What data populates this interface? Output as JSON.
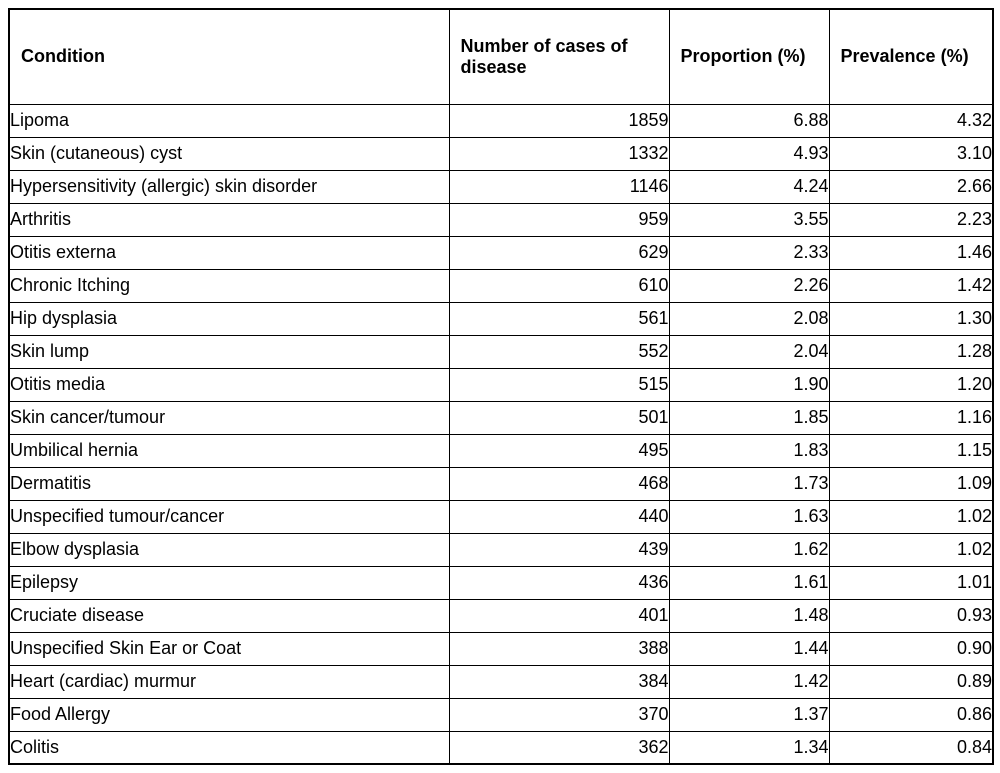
{
  "table": {
    "headers": [
      "Condition",
      "Number of cases of disease",
      "Proportion (%)",
      "Prevalence (%)"
    ],
    "rows": [
      {
        "condition": "Lipoma",
        "cases": "1859",
        "proportion": "6.88",
        "prevalence": "4.32"
      },
      {
        "condition": "Skin (cutaneous) cyst",
        "cases": "1332",
        "proportion": "4.93",
        "prevalence": "3.10"
      },
      {
        "condition": "Hypersensitivity (allergic) skin disorder",
        "cases": "1146",
        "proportion": "4.24",
        "prevalence": "2.66"
      },
      {
        "condition": "Arthritis",
        "cases": "959",
        "proportion": "3.55",
        "prevalence": "2.23"
      },
      {
        "condition": "Otitis externa",
        "cases": "629",
        "proportion": "2.33",
        "prevalence": "1.46"
      },
      {
        "condition": "Chronic Itching",
        "cases": "610",
        "proportion": "2.26",
        "prevalence": "1.42"
      },
      {
        "condition": "Hip dysplasia",
        "cases": "561",
        "proportion": "2.08",
        "prevalence": "1.30"
      },
      {
        "condition": "Skin lump",
        "cases": "552",
        "proportion": "2.04",
        "prevalence": "1.28"
      },
      {
        "condition": "Otitis media",
        "cases": "515",
        "proportion": "1.90",
        "prevalence": "1.20"
      },
      {
        "condition": "Skin cancer/tumour",
        "cases": "501",
        "proportion": "1.85",
        "prevalence": "1.16"
      },
      {
        "condition": "Umbilical hernia",
        "cases": "495",
        "proportion": "1.83",
        "prevalence": "1.15"
      },
      {
        "condition": "Dermatitis",
        "cases": "468",
        "proportion": "1.73",
        "prevalence": "1.09"
      },
      {
        "condition": "Unspecified tumour/cancer",
        "cases": "440",
        "proportion": "1.63",
        "prevalence": "1.02"
      },
      {
        "condition": "Elbow dysplasia",
        "cases": "439",
        "proportion": "1.62",
        "prevalence": "1.02"
      },
      {
        "condition": "Epilepsy",
        "cases": "436",
        "proportion": "1.61",
        "prevalence": "1.01"
      },
      {
        "condition": "Cruciate disease",
        "cases": "401",
        "proportion": "1.48",
        "prevalence": "0.93"
      },
      {
        "condition": "Unspecified Skin Ear or Coat",
        "cases": "388",
        "proportion": "1.44",
        "prevalence": "0.90"
      },
      {
        "condition": "Heart (cardiac) murmur",
        "cases": "384",
        "proportion": "1.42",
        "prevalence": "0.89"
      },
      {
        "condition": "Food Allergy",
        "cases": "370",
        "proportion": "1.37",
        "prevalence": "0.86"
      },
      {
        "condition": "Colitis",
        "cases": "362",
        "proportion": "1.34",
        "prevalence": "0.84"
      }
    ],
    "colors": {
      "border": "#000000",
      "text": "#000000",
      "background": "#ffffff"
    }
  },
  "chart_data": {
    "type": "table",
    "title": "",
    "columns": [
      "Condition",
      "Number of cases of disease",
      "Proportion (%)",
      "Prevalence (%)"
    ],
    "categories": [
      "Lipoma",
      "Skin (cutaneous) cyst",
      "Hypersensitivity (allergic) skin disorder",
      "Arthritis",
      "Otitis externa",
      "Chronic Itching",
      "Hip dysplasia",
      "Skin lump",
      "Otitis media",
      "Skin cancer/tumour",
      "Umbilical hernia",
      "Dermatitis",
      "Unspecified tumour/cancer",
      "Elbow dysplasia",
      "Epilepsy",
      "Cruciate disease",
      "Unspecified Skin Ear or Coat",
      "Heart (cardiac) murmur",
      "Food Allergy",
      "Colitis"
    ],
    "series": [
      {
        "name": "Number of cases of disease",
        "values": [
          1859,
          1332,
          1146,
          959,
          629,
          610,
          561,
          552,
          515,
          501,
          495,
          468,
          440,
          439,
          436,
          401,
          388,
          384,
          370,
          362
        ]
      },
      {
        "name": "Proportion (%)",
        "values": [
          6.88,
          4.93,
          4.24,
          3.55,
          2.33,
          2.26,
          2.08,
          2.04,
          1.9,
          1.85,
          1.83,
          1.73,
          1.63,
          1.62,
          1.61,
          1.48,
          1.44,
          1.42,
          1.37,
          1.34
        ]
      },
      {
        "name": "Prevalence (%)",
        "values": [
          4.32,
          3.1,
          2.66,
          2.23,
          1.46,
          1.42,
          1.3,
          1.28,
          1.2,
          1.16,
          1.15,
          1.09,
          1.02,
          1.02,
          1.01,
          0.93,
          0.9,
          0.89,
          0.86,
          0.84
        ]
      }
    ]
  }
}
